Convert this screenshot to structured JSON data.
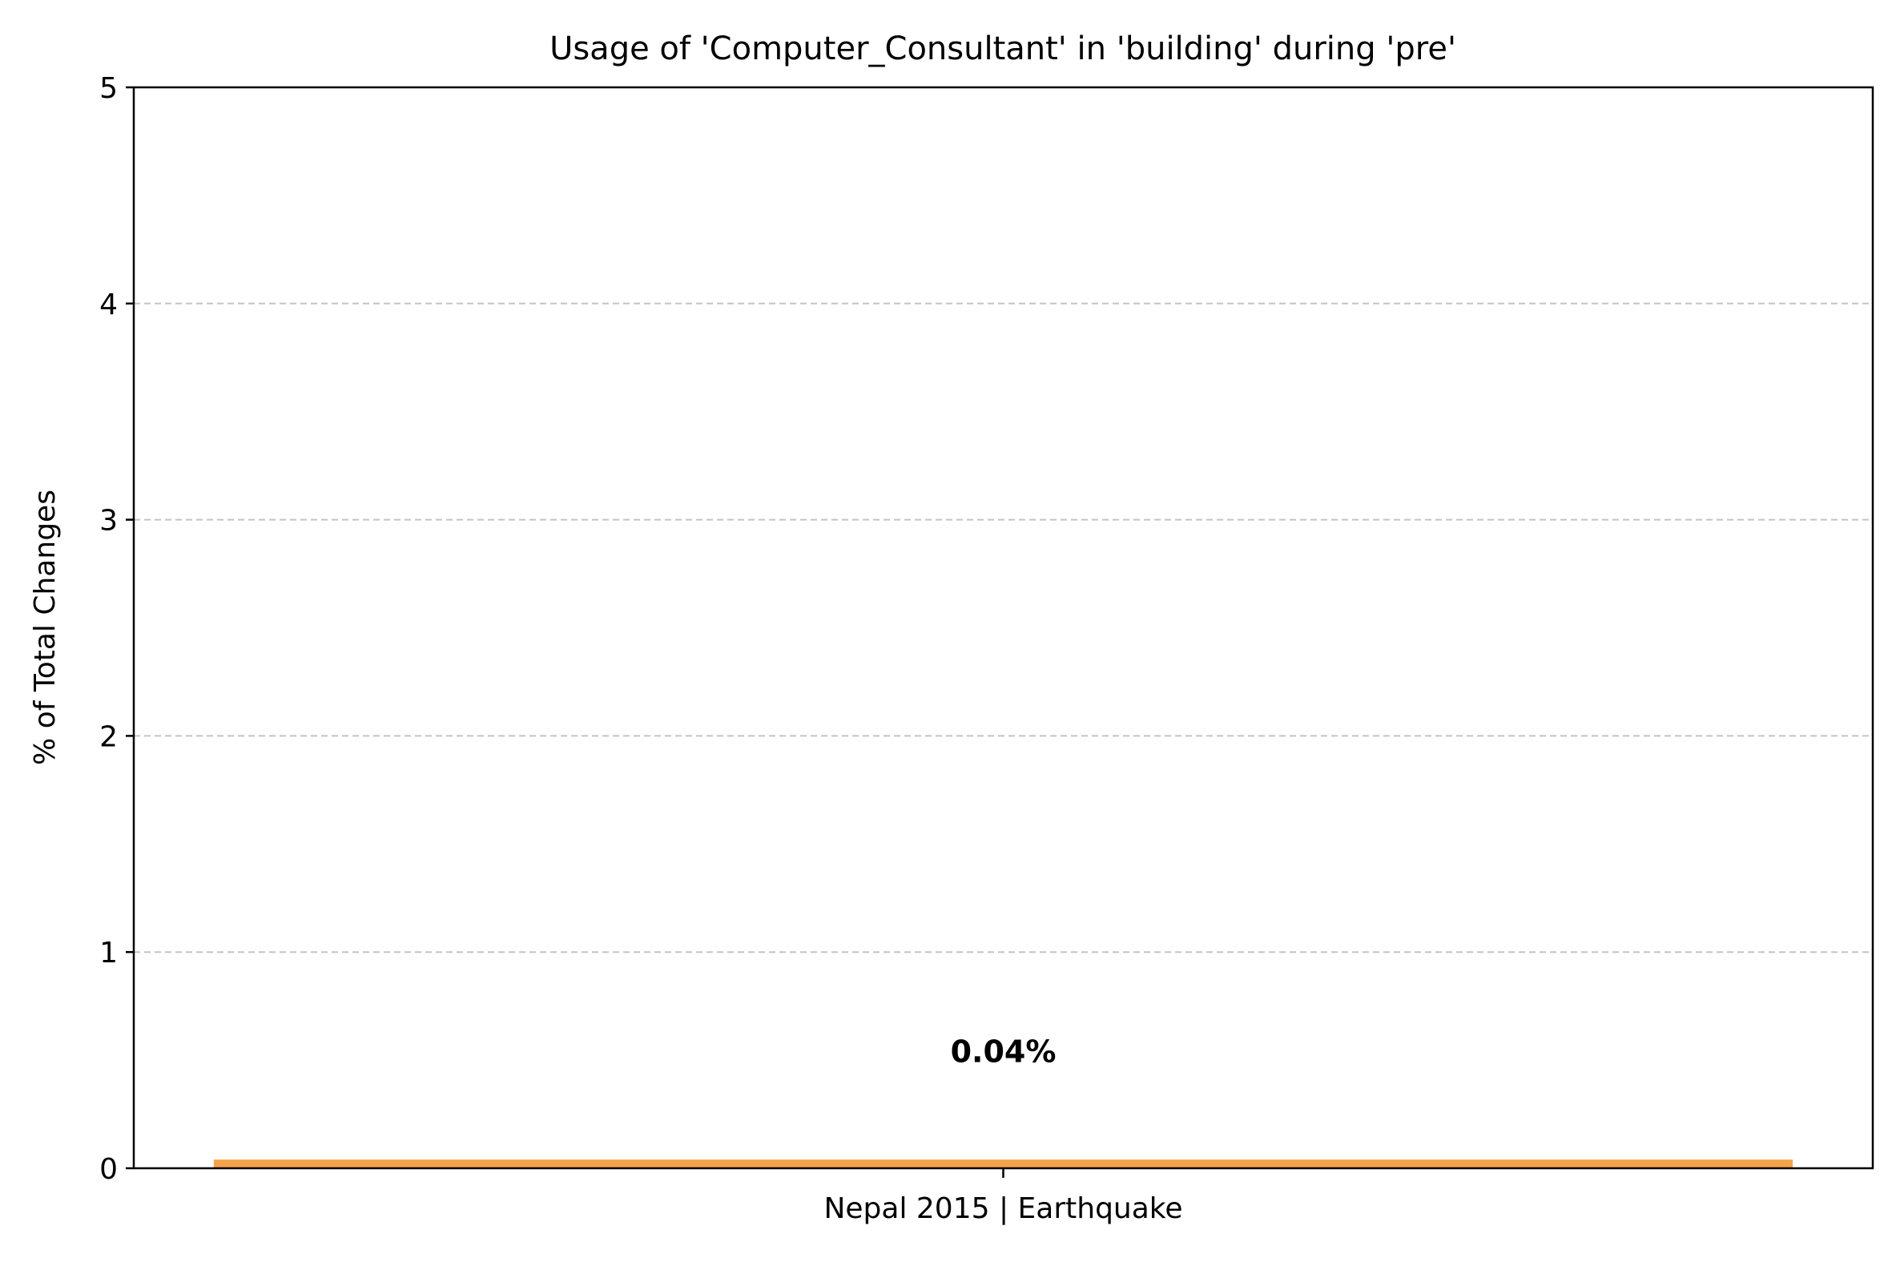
{
  "chart_data": {
    "type": "bar",
    "title": "Usage of 'Computer_Consultant' in 'building' during 'pre'",
    "xlabel": "",
    "ylabel": "% of Total Changes",
    "categories": [
      "Nepal 2015 | Earthquake"
    ],
    "values": [
      0.04
    ],
    "data_labels": [
      "0.04%"
    ],
    "ylim": [
      0,
      5
    ],
    "yticks": [
      "0",
      "1",
      "2",
      "3",
      "4",
      "5"
    ],
    "grid": "y-dashed",
    "bar_color": "#f5a24b",
    "legend": "none"
  }
}
